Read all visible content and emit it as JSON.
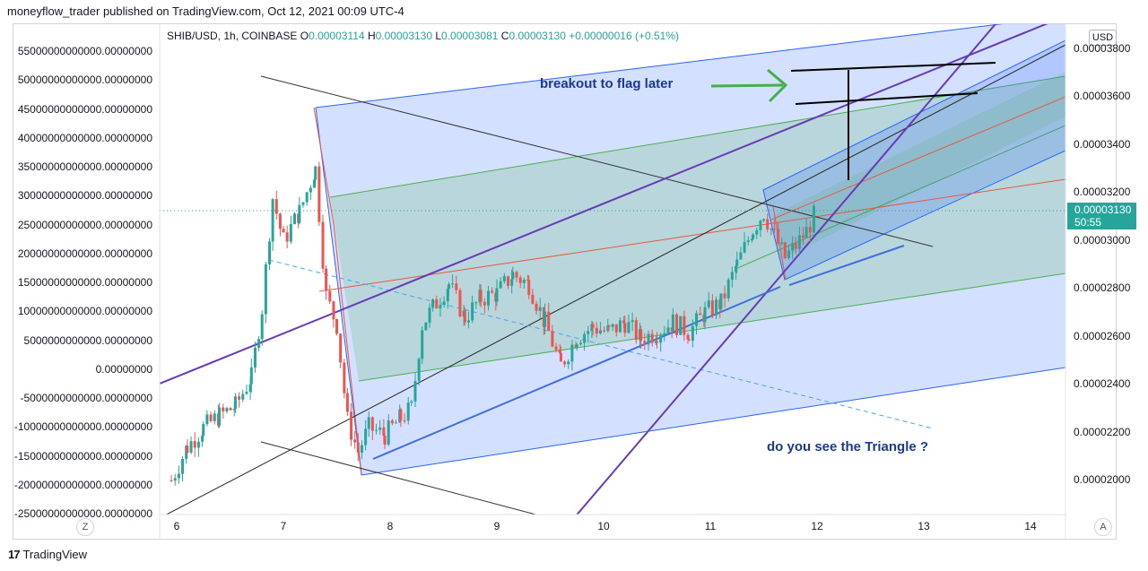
{
  "header": "moneyflow_trader published on TradingView.com, Oct 12, 2021 00:09 UTC-4",
  "legend": {
    "symbol": "SHIB/USD, 1h, COINBASE",
    "o_label": "O",
    "o": "0.00003114",
    "h_label": "H",
    "h": "0.00003130",
    "l_label": "L",
    "l": "0.00003081",
    "c_label": "C",
    "c": "0.00003130",
    "change": "+0.00000016 (+0.51%)"
  },
  "currency_button": "USD",
  "last_price": {
    "value": "0.00003130",
    "countdown": "50:55"
  },
  "zoom_button": "Z",
  "auto_button": "A",
  "footer_brand": "TradingView",
  "footer_logo": "17",
  "annotations": {
    "breakout": "breakout to flag later",
    "triangle": "do you see the Triangle ?"
  },
  "colors": {
    "up": "#26a69a",
    "down": "#ef5350",
    "channel_blue": "#2962ff",
    "channel_green": "#4caf50",
    "purple": "#673ab7",
    "red_line": "#e65a3c",
    "annotation": "#1a3a8f"
  },
  "chart_data": {
    "type": "candlestick",
    "symbol": "SHIB/USD",
    "interval": "1h",
    "exchange": "COINBASE",
    "x_ticks": [
      "6",
      "7",
      "8",
      "9",
      "10",
      "11",
      "12",
      "13",
      "14"
    ],
    "right_axis_ticks": [
      "0.00003800",
      "0.00003600",
      "0.00003400",
      "0.00003200",
      "0.00003000",
      "0.00002800",
      "0.00002600",
      "0.00002400",
      "0.00002200",
      "0.00002000"
    ],
    "left_axis_ticks": [
      "55000000000000.00000000",
      "50000000000000.00000000",
      "45000000000000.00000000",
      "40000000000000.00000000",
      "35000000000000.00000000",
      "30000000000000.00000000",
      "25000000000000.00000000",
      "20000000000000.00000000",
      "15000000000000.00000000",
      "10000000000000.00000000",
      "5000000000000.00000000",
      "0.00000000",
      "-5000000000000.00000000",
      "-10000000000000.00000000",
      "-15000000000000.00000000",
      "-20000000000000.00000000",
      "-25000000000000.00000000"
    ],
    "y_range": [
      1.93e-05,
      3.95e-05
    ],
    "x_range": [
      5.86,
      14.34
    ],
    "close_series": {
      "x": [
        5.95,
        6.1,
        6.25,
        6.4,
        6.55,
        6.7,
        6.8,
        6.9,
        7.0,
        7.15,
        7.3,
        7.4,
        7.5,
        7.6,
        7.7,
        7.8,
        7.95,
        8.1,
        8.2,
        8.3,
        8.4,
        8.55,
        8.7,
        8.85,
        9.0,
        9.15,
        9.3,
        9.45,
        9.6,
        9.75,
        9.9,
        10.05,
        10.2,
        10.35,
        10.5,
        10.65,
        10.8,
        10.95,
        11.1,
        11.25,
        11.4,
        11.5,
        11.6,
        11.7,
        11.8,
        11.9,
        12.0
      ],
      "y": [
        2e-05,
        2.14e-05,
        2.22e-05,
        2.27e-05,
        2.31e-05,
        2.43e-05,
        2.72e-05,
        3.18e-05,
        3e-05,
        3.12e-05,
        3.3e-05,
        2.77e-05,
        2.65e-05,
        2.25e-05,
        2.12e-05,
        2.22e-05,
        2.19e-05,
        2.26e-05,
        2.3e-05,
        2.65e-05,
        2.72e-05,
        2.82e-05,
        2.68e-05,
        2.76e-05,
        2.78e-05,
        2.86e-05,
        2.82e-05,
        2.66e-05,
        2.48e-05,
        2.6e-05,
        2.64e-05,
        2.62e-05,
        2.66e-05,
        2.59e-05,
        2.62e-05,
        2.66e-05,
        2.62e-05,
        2.7e-05,
        2.74e-05,
        2.9e-05,
        3.05e-05,
        3.12e-05,
        3.02e-05,
        2.93e-05,
        2.98e-05,
        3.04e-05,
        3.13e-05
      ]
    },
    "last": 3.13e-05
  }
}
